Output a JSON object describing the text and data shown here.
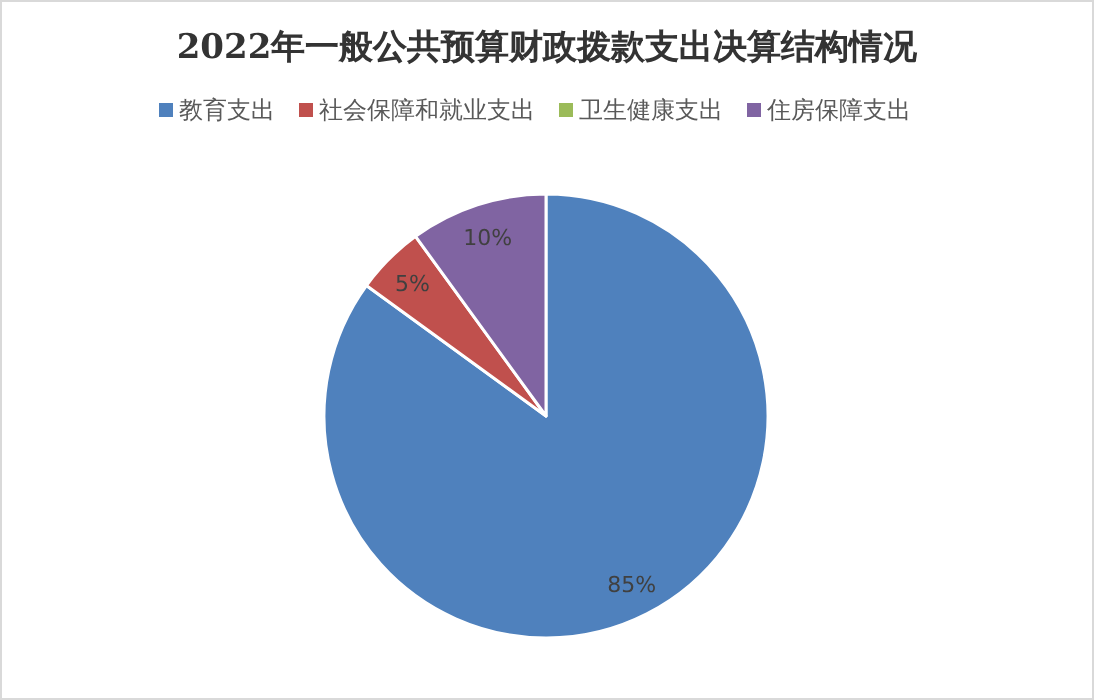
{
  "chart_data": {
    "type": "pie",
    "title": "2022年一般公共预算财政拨款支出决算结构情况",
    "categories": [
      "教育支出",
      "社会保障和就业支出",
      "卫生健康支出",
      "住房保障支出"
    ],
    "values": [
      85,
      5,
      0,
      10
    ],
    "colors": [
      "#4f81bd",
      "#c0504d",
      "#9bbb59",
      "#8064a2"
    ],
    "value_labels": [
      "85%",
      "5%",
      null,
      "10%"
    ],
    "legend": "top"
  }
}
